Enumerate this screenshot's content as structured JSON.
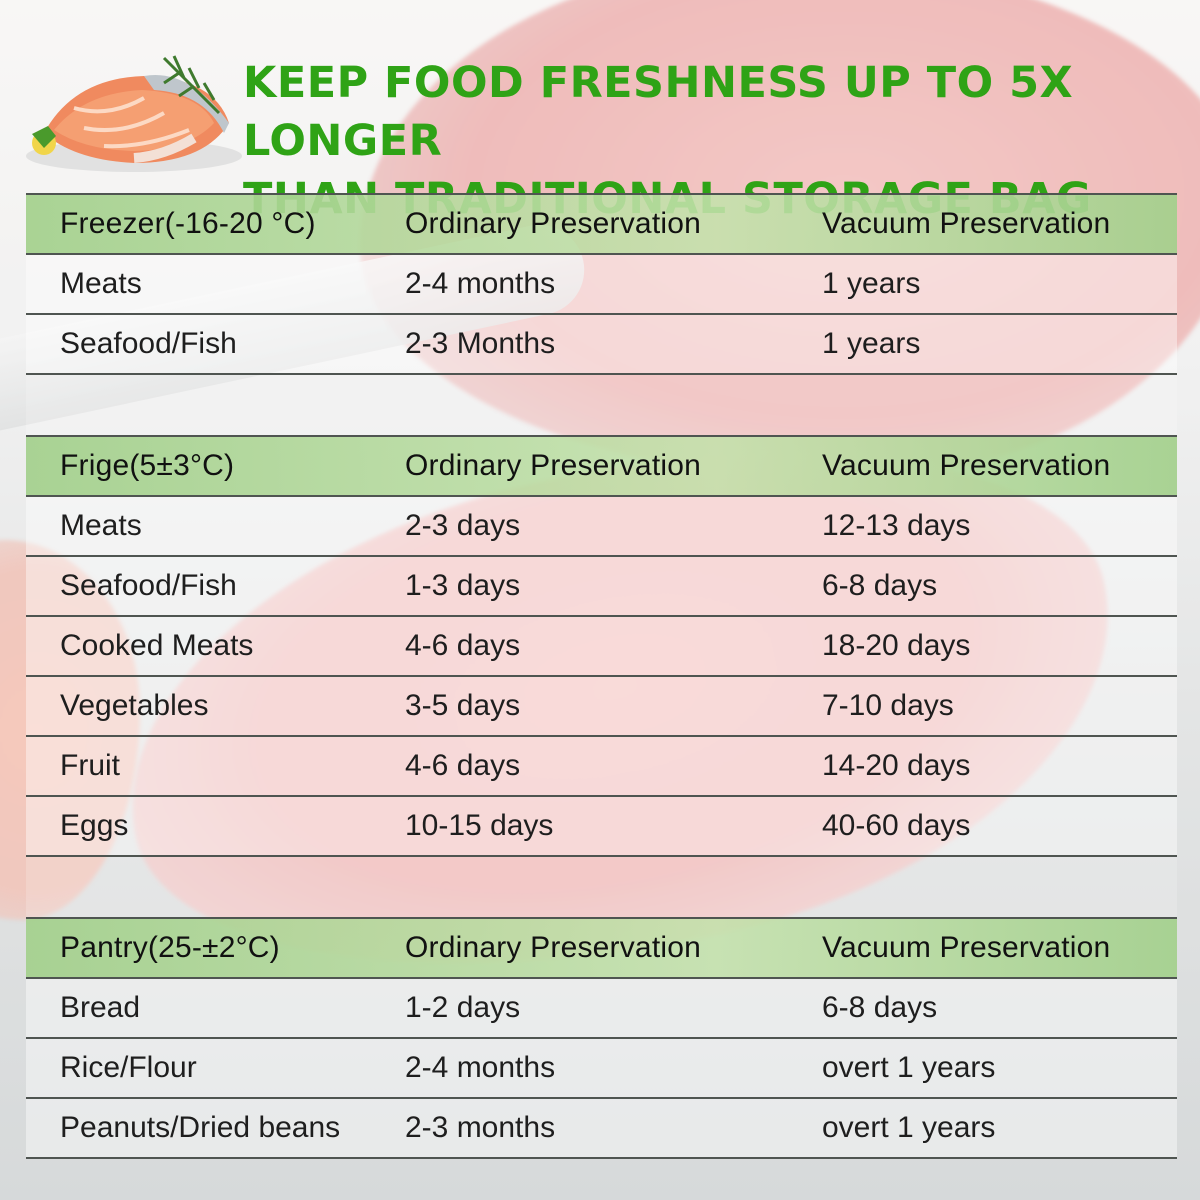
{
  "headline": {
    "line1": "KEEP FOOD FRESHNESS UP TO 5X LONGER",
    "line2": "THAN TRADITIONAL STORAGE BAG"
  },
  "colors": {
    "headline": "#2fa316",
    "header_row": "#a3d08c",
    "grid_line": "#4f5551"
  },
  "sections": [
    {
      "header": [
        "Freezer(-16-20 °C)",
        "Ordinary Preservation",
        "Vacuum Preservation"
      ],
      "rows": [
        [
          "Meats",
          "2-4 months",
          "1 years"
        ],
        [
          "Seafood/Fish",
          "2-3 Months",
          "1 years"
        ]
      ]
    },
    {
      "header": [
        "Frige(5±3°C)",
        "Ordinary Preservation",
        "Vacuum Preservation"
      ],
      "rows": [
        [
          "Meats",
          "2-3 days",
          "12-13 days"
        ],
        [
          "Seafood/Fish",
          "1-3 days",
          "6-8 days"
        ],
        [
          "Cooked Meats",
          "4-6 days",
          "18-20 days"
        ],
        [
          "Vegetables",
          "3-5 days",
          "7-10 days"
        ],
        [
          "Fruit",
          "4-6 days",
          "14-20 days"
        ],
        [
          "Eggs",
          "10-15 days",
          "40-60 days"
        ]
      ]
    },
    {
      "header": [
        "Pantry(25-±2°C)",
        "Ordinary Preservation",
        "Vacuum Preservation"
      ],
      "rows": [
        [
          "Bread",
          "1-2 days",
          "6-8 days"
        ],
        [
          "Rice/Flour",
          "2-4 months",
          "overt 1 years"
        ],
        [
          "Peanuts/Dried beans",
          "2-3 months",
          "overt 1 years"
        ]
      ]
    }
  ]
}
